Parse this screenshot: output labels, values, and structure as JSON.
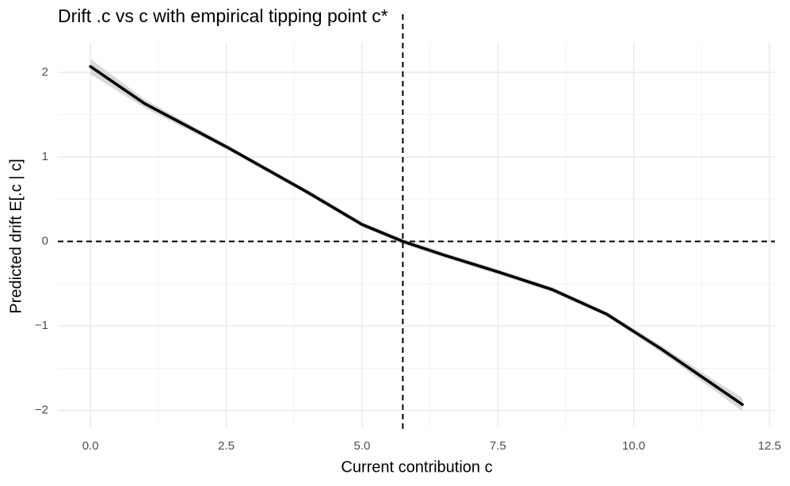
{
  "chart_data": {
    "type": "line",
    "title": "Drift .c vs c with empirical tipping point c*",
    "x_label": "Current contribution c",
    "y_label": "Predicted drift E[.c | c]",
    "x": [
      0,
      1,
      2.5,
      4,
      5,
      5.75,
      6.5,
      7.5,
      8.5,
      9.5,
      10.5,
      11.5,
      12
    ],
    "values": [
      2.07,
      1.63,
      1.12,
      0.58,
      0.2,
      0.0,
      -0.16,
      -0.36,
      -0.57,
      -0.86,
      -1.27,
      -1.71,
      -1.93
    ],
    "ribbon": {
      "upper": [
        2.16,
        1.68,
        1.15,
        0.61,
        0.23,
        0.03,
        -0.13,
        -0.33,
        -0.54,
        -0.83,
        -1.23,
        -1.65,
        -1.85
      ],
      "lower": [
        1.98,
        1.58,
        1.09,
        0.55,
        0.17,
        -0.03,
        -0.19,
        -0.39,
        -0.6,
        -0.89,
        -1.31,
        -1.77,
        -2.01
      ]
    },
    "color": "#000000",
    "ribbon_color": "#d9d9d9",
    "vline": 5.75,
    "hline": 0,
    "xlim": [
      -0.6,
      12.6
    ],
    "ylim": [
      -2.2,
      2.35
    ],
    "xticks": [
      {
        "value": 0,
        "label": "0.0"
      },
      2.5,
      {
        "value": 5,
        "label": "5.0"
      },
      7.5,
      {
        "value": 10,
        "label": "10.0"
      },
      12.5
    ],
    "yticks": [
      {
        "value": -2,
        "label": "−2"
      },
      {
        "value": -1,
        "label": "−1"
      },
      0,
      1,
      2
    ],
    "grid": true
  }
}
